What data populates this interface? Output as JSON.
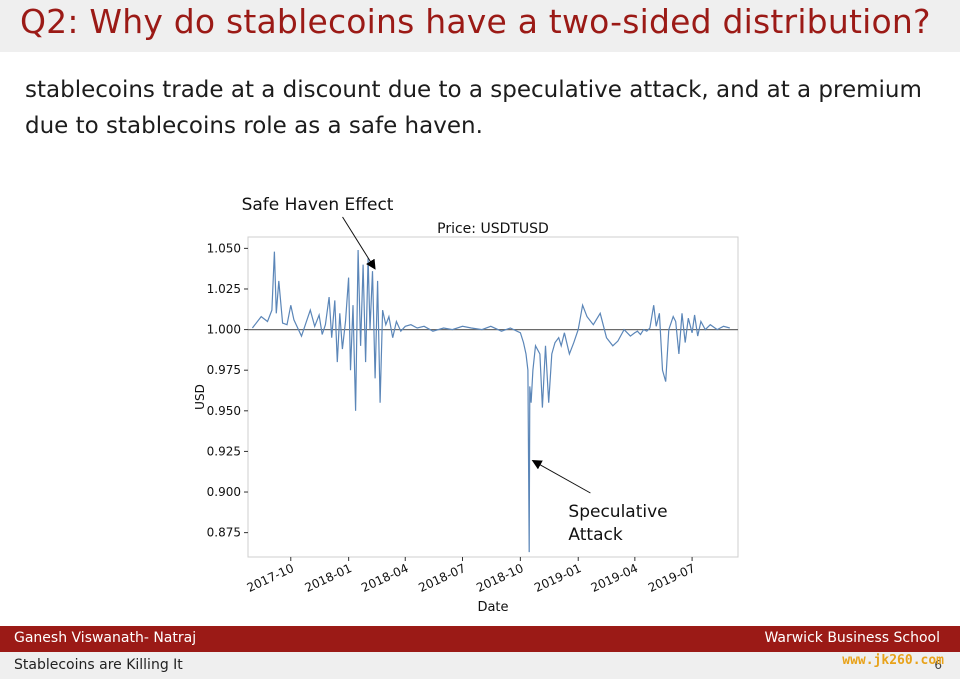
{
  "slide": {
    "title": "Q2: Why do stablecoins have a two-sided distribution?",
    "body": "stablecoins trade at a discount due to a speculative attack, and at a premium due to stablecoins role as a safe haven."
  },
  "footer": {
    "author": "Ganesh Viswanath- Natraj",
    "institution": "Warwick Business School",
    "talk_title": "Stablecoins are Killing It",
    "page": "6",
    "watermark": "www.jk260.com"
  },
  "chart_data": {
    "type": "line",
    "title": "Price: USDTUSD",
    "xlabel": "Date",
    "ylabel": "USD",
    "ylim": [
      0.86,
      1.057
    ],
    "xlim": [
      "2017-07-25",
      "2019-09-12"
    ],
    "yticks": [
      1.05,
      1.025,
      1.0,
      0.975,
      0.95,
      0.925,
      0.9,
      0.875
    ],
    "ytick_labels": [
      "1.050",
      "1.025",
      "1.000",
      "0.975",
      "0.950",
      "0.925",
      "0.900",
      "0.875"
    ],
    "xticks": [
      "2017-10-01",
      "2018-01-01",
      "2018-04-01",
      "2018-07-01",
      "2018-10-01",
      "2019-01-01",
      "2019-04-01",
      "2019-07-01"
    ],
    "xtick_labels": [
      "2017-10",
      "2018-01",
      "2018-04",
      "2018-07",
      "2018-10",
      "2019-01",
      "2019-04",
      "2019-07"
    ],
    "reference_line": 1.0,
    "grid": false,
    "line_color": "#5b86b8",
    "series": [
      {
        "x": [
          "2017-08-01",
          "2017-08-15",
          "2017-08-25",
          "2017-09-01",
          "2017-09-05",
          "2017-09-08",
          "2017-09-12",
          "2017-09-18",
          "2017-09-25",
          "2017-10-01",
          "2017-10-06",
          "2017-10-12",
          "2017-10-18",
          "2017-10-25",
          "2017-11-01",
          "2017-11-08",
          "2017-11-15",
          "2017-11-20",
          "2017-11-25",
          "2017-12-01",
          "2017-12-05",
          "2017-12-10",
          "2017-12-14",
          "2017-12-18",
          "2017-12-22",
          "2017-12-27",
          "2018-01-01",
          "2018-01-04",
          "2018-01-08",
          "2018-01-12",
          "2018-01-16",
          "2018-01-20",
          "2018-01-24",
          "2018-01-28",
          "2018-02-01",
          "2018-02-04",
          "2018-02-08",
          "2018-02-12",
          "2018-02-16",
          "2018-02-20",
          "2018-02-24",
          "2018-03-01",
          "2018-03-06",
          "2018-03-12",
          "2018-03-18",
          "2018-03-25",
          "2018-04-01",
          "2018-04-10",
          "2018-04-20",
          "2018-05-01",
          "2018-05-15",
          "2018-06-01",
          "2018-06-15",
          "2018-07-01",
          "2018-07-15",
          "2018-08-01",
          "2018-08-15",
          "2018-09-01",
          "2018-09-15",
          "2018-10-01",
          "2018-10-06",
          "2018-10-10",
          "2018-10-13",
          "2018-10-15",
          "2018-10-16",
          "2018-10-18",
          "2018-10-21",
          "2018-10-25",
          "2018-11-01",
          "2018-11-05",
          "2018-11-10",
          "2018-11-15",
          "2018-11-20",
          "2018-11-25",
          "2018-12-01",
          "2018-12-05",
          "2018-12-10",
          "2018-12-18",
          "2018-12-25",
          "2019-01-01",
          "2019-01-08",
          "2019-01-15",
          "2019-01-25",
          "2019-02-05",
          "2019-02-15",
          "2019-02-25",
          "2019-03-05",
          "2019-03-15",
          "2019-03-25",
          "2019-04-01",
          "2019-04-05",
          "2019-04-10",
          "2019-04-15",
          "2019-04-20",
          "2019-04-25",
          "2019-05-01",
          "2019-05-05",
          "2019-05-10",
          "2019-05-15",
          "2019-05-20",
          "2019-05-25",
          "2019-06-01",
          "2019-06-05",
          "2019-06-10",
          "2019-06-15",
          "2019-06-20",
          "2019-06-25",
          "2019-07-01",
          "2019-07-05",
          "2019-07-10",
          "2019-07-15",
          "2019-07-22",
          "2019-07-30",
          "2019-08-10",
          "2019-08-20",
          "2019-08-30"
        ],
        "values": [
          1.001,
          1.008,
          1.005,
          1.012,
          1.048,
          1.01,
          1.03,
          1.004,
          1.003,
          1.015,
          1.006,
          1.001,
          0.996,
          1.004,
          1.012,
          1.002,
          1.009,
          0.997,
          1.003,
          1.02,
          0.995,
          1.018,
          0.98,
          1.01,
          0.988,
          1.005,
          1.032,
          0.975,
          1.015,
          0.95,
          1.049,
          0.99,
          1.04,
          0.98,
          1.044,
          1.0,
          1.036,
          0.97,
          1.03,
          0.955,
          1.012,
          1.003,
          1.008,
          0.995,
          1.005,
          0.999,
          1.002,
          1.003,
          1.001,
          1.002,
          0.999,
          1.001,
          1.0,
          1.002,
          1.001,
          1.0,
          1.002,
          0.999,
          1.001,
          0.998,
          0.992,
          0.985,
          0.975,
          0.863,
          0.965,
          0.955,
          0.975,
          0.99,
          0.985,
          0.952,
          0.99,
          0.955,
          0.985,
          0.992,
          0.995,
          0.99,
          0.998,
          0.985,
          0.992,
          1.0,
          1.015,
          1.008,
          1.003,
          1.01,
          0.995,
          0.99,
          0.993,
          1.0,
          0.996,
          0.998,
          0.999,
          0.997,
          1.0,
          0.999,
          1.001,
          1.015,
          1.002,
          1.01,
          0.975,
          0.968,
          1.0,
          1.008,
          1.005,
          0.985,
          1.01,
          0.992,
          1.007,
          0.998,
          1.009,
          0.996,
          1.005,
          1.0,
          1.003,
          1.0,
          1.002,
          1.001
        ]
      }
    ],
    "annotations": [
      {
        "text": [
          "Safe Haven Effect"
        ],
        "target_x": "2018-02-08",
        "target_y": 1.044
      },
      {
        "text": [
          "Speculative",
          "Attack"
        ],
        "target_x": "2018-10-17",
        "target_y": 0.924
      }
    ]
  }
}
